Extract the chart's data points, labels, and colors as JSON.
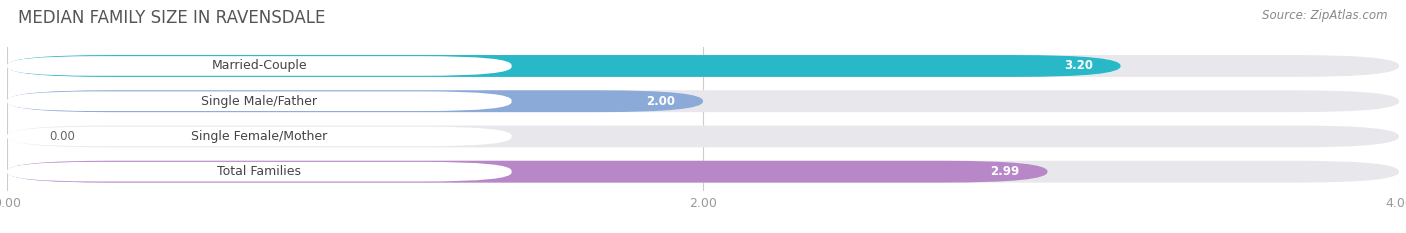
{
  "title": "MEDIAN FAMILY SIZE IN RAVENSDALE",
  "source": "Source: ZipAtlas.com",
  "categories": [
    "Married-Couple",
    "Single Male/Father",
    "Single Female/Mother",
    "Total Families"
  ],
  "values": [
    3.2,
    2.0,
    0.0,
    2.99
  ],
  "bar_colors": [
    "#29b8c8",
    "#8baad8",
    "#f4a0b5",
    "#b887c8"
  ],
  "xlim": [
    0,
    4.0
  ],
  "xticks": [
    0.0,
    2.0,
    4.0
  ],
  "xticklabels": [
    "0.00",
    "2.00",
    "4.00"
  ],
  "background_color": "#ffffff",
  "bar_bg_color": "#e8e8ec",
  "title_fontsize": 12,
  "source_fontsize": 8.5,
  "tick_fontsize": 9,
  "label_fontsize": 9,
  "value_fontsize": 8.5
}
